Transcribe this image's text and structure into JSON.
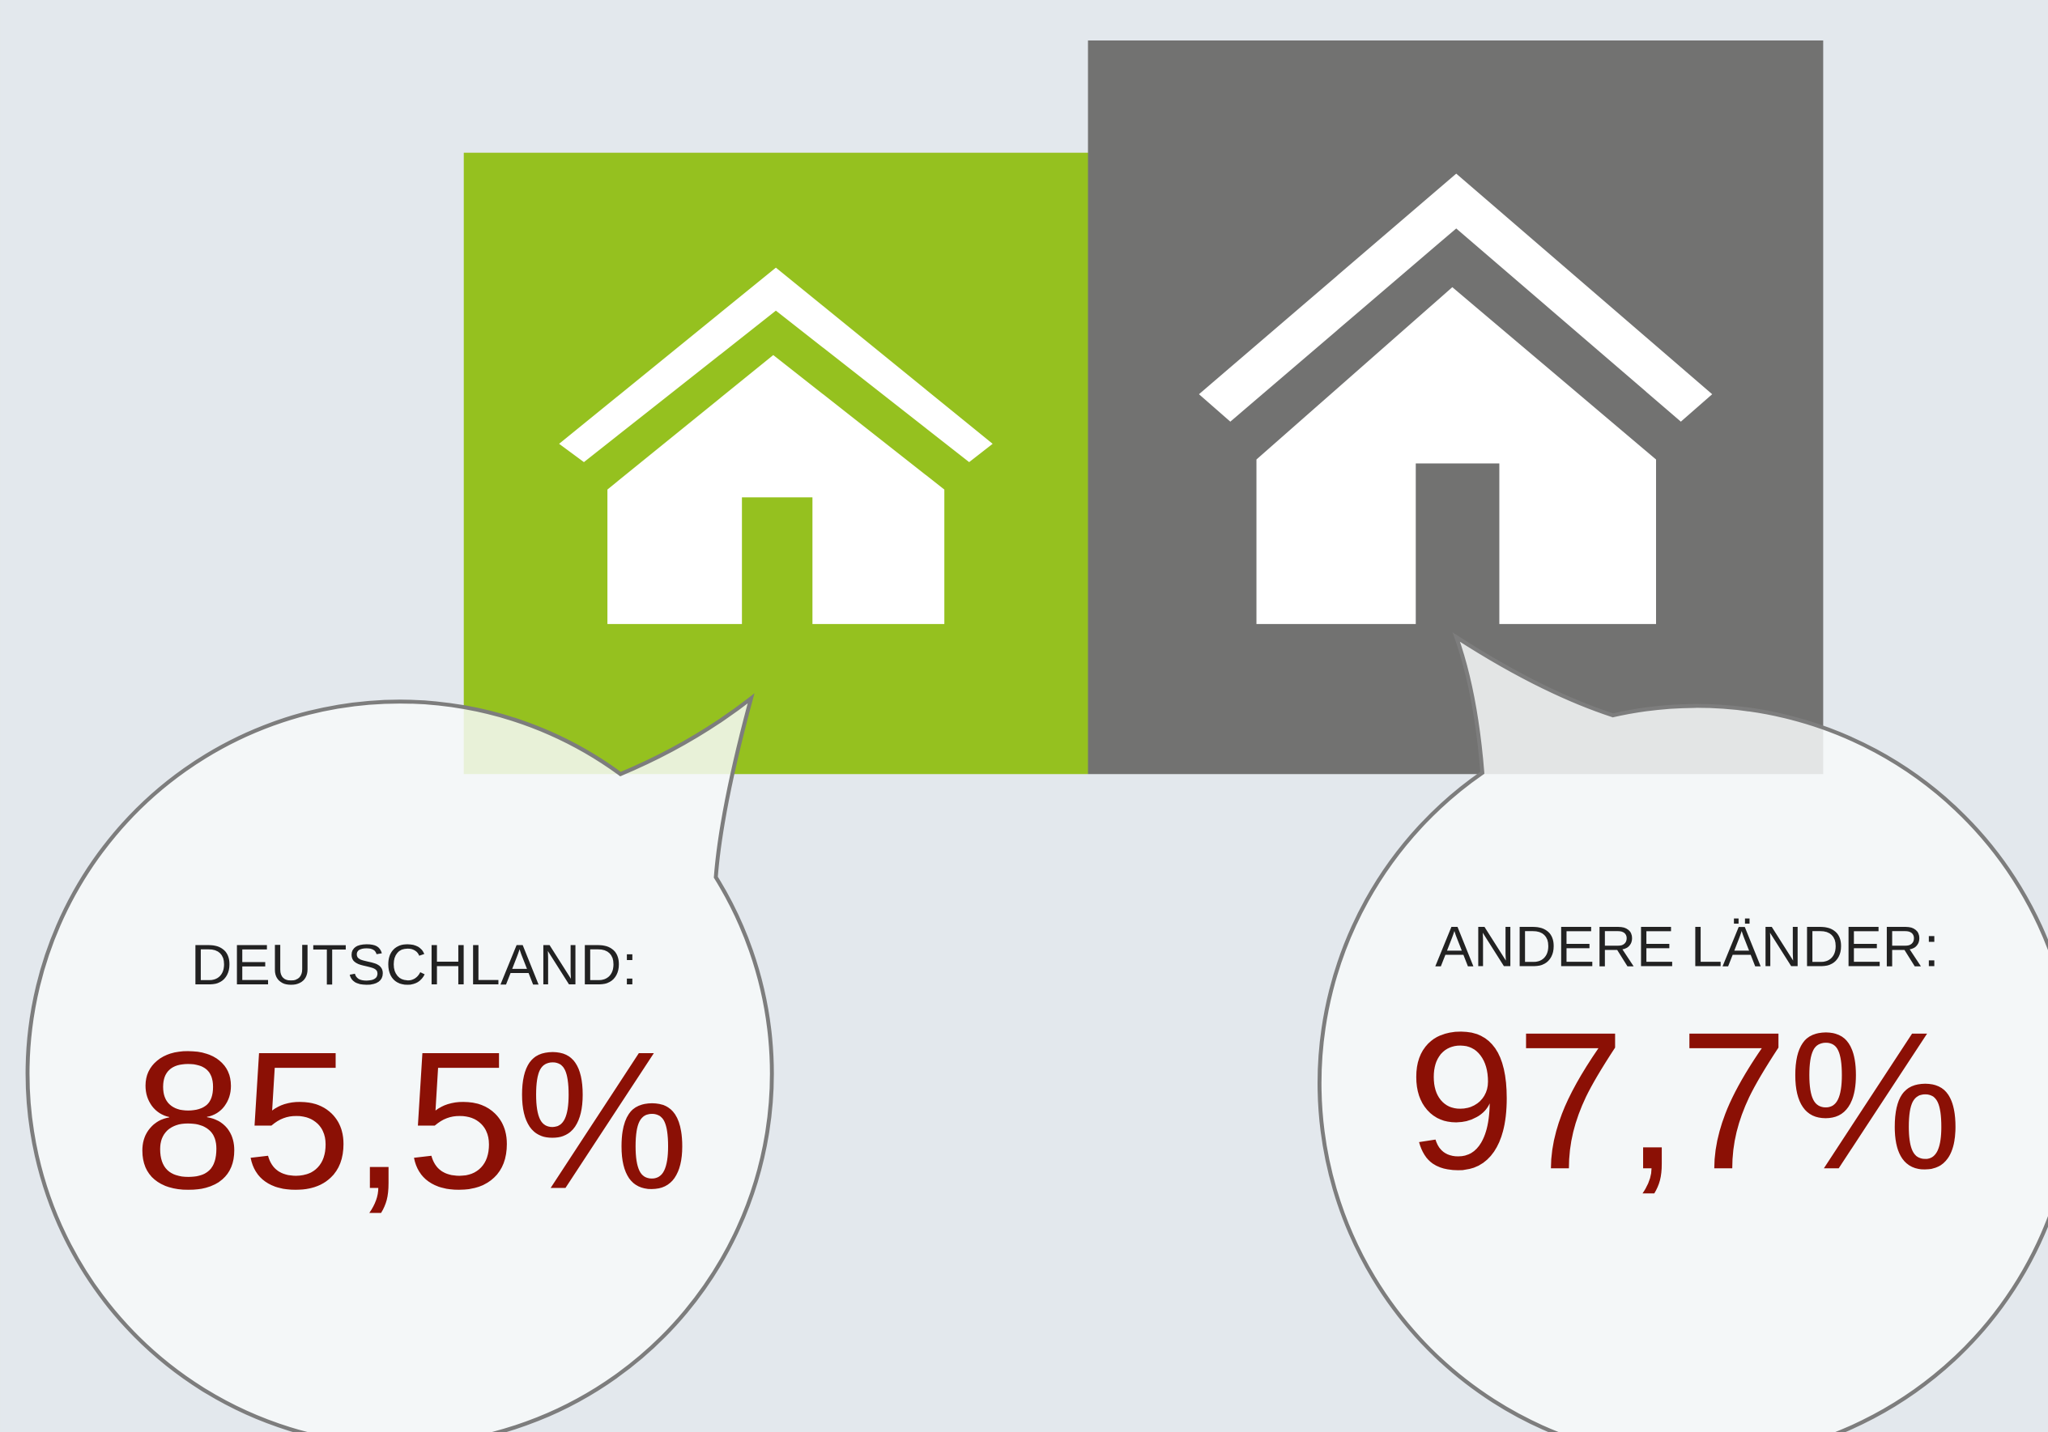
{
  "items": [
    {
      "label": "DEUTSCHLAND:",
      "value": "85,5%"
    },
    {
      "label": "ANDERE LÄNDER:",
      "value": "97,7%"
    }
  ]
}
